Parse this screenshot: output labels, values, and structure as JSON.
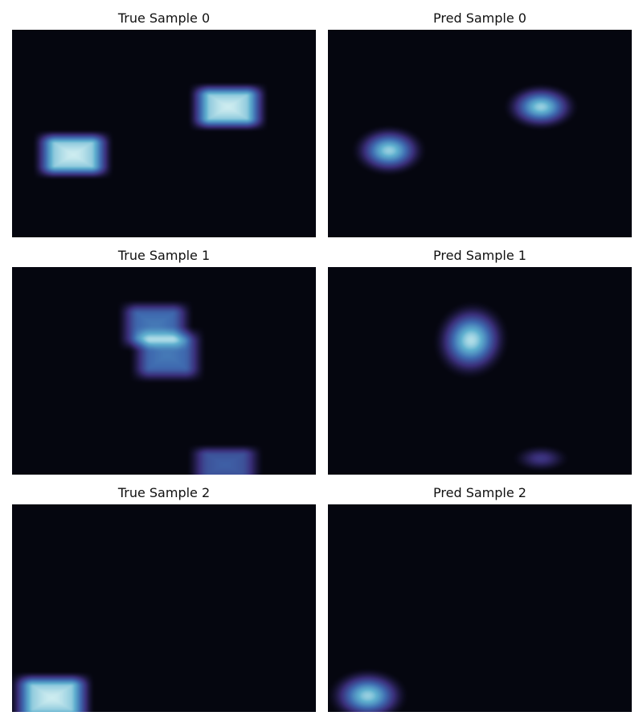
{
  "chart_data": [
    {
      "type": "heatmap",
      "title": "True Sample 0",
      "background": "#05060f",
      "colormap": [
        "#05060f",
        "#3a2f7a",
        "#3f6bb0",
        "#5fb0cf",
        "#e8fbf8"
      ],
      "blobs": [
        {
          "shape": "rect",
          "cx": 0.2,
          "cy": 0.6,
          "rx": 0.105,
          "ry": 0.095,
          "intensity": 0.95
        },
        {
          "shape": "rect",
          "cx": 0.71,
          "cy": 0.37,
          "rx": 0.105,
          "ry": 0.095,
          "intensity": 0.95
        }
      ]
    },
    {
      "type": "heatmap",
      "title": "Pred Sample 0",
      "background": "#05060f",
      "colormap": [
        "#05060f",
        "#3a2f7a",
        "#3f6bb0",
        "#5fb0cf",
        "#e8fbf8"
      ],
      "blobs": [
        {
          "shape": "ellipse",
          "cx": 0.2,
          "cy": 0.58,
          "rx": 0.13,
          "ry": 0.13,
          "intensity": 0.85
        },
        {
          "shape": "ellipse",
          "cx": 0.7,
          "cy": 0.37,
          "rx": 0.13,
          "ry": 0.12,
          "intensity": 0.85
        }
      ]
    },
    {
      "type": "heatmap",
      "title": "True Sample 1",
      "background": "#05060f",
      "colormap": [
        "#05060f",
        "#3a2f7a",
        "#3f6bb0",
        "#5fb0cf",
        "#e8fbf8"
      ],
      "blobs": [
        {
          "shape": "rect",
          "cx": 0.47,
          "cy": 0.28,
          "rx": 0.1,
          "ry": 0.1,
          "intensity": 0.55
        },
        {
          "shape": "rect",
          "cx": 0.51,
          "cy": 0.42,
          "rx": 0.1,
          "ry": 0.11,
          "intensity": 0.55
        },
        {
          "shape": "rect",
          "cx": 0.7,
          "cy": 0.95,
          "rx": 0.1,
          "ry": 0.08,
          "intensity": 0.45
        }
      ]
    },
    {
      "type": "heatmap",
      "title": "Pred Sample 1",
      "background": "#05060f",
      "colormap": [
        "#05060f",
        "#3a2f7a",
        "#3f6bb0",
        "#5fb0cf",
        "#e8fbf8"
      ],
      "blobs": [
        {
          "shape": "ellipse",
          "cx": 0.47,
          "cy": 0.35,
          "rx": 0.13,
          "ry": 0.2,
          "intensity": 0.9,
          "rotate": -0.55
        },
        {
          "shape": "ellipse",
          "cx": 0.7,
          "cy": 0.92,
          "rx": 0.1,
          "ry": 0.07,
          "intensity": 0.28
        }
      ]
    },
    {
      "type": "heatmap",
      "title": "True Sample 2",
      "background": "#05060f",
      "colormap": [
        "#05060f",
        "#3a2f7a",
        "#3f6bb0",
        "#5fb0cf",
        "#e8fbf8"
      ],
      "blobs": [
        {
          "shape": "rect",
          "cx": 0.13,
          "cy": 0.93,
          "rx": 0.11,
          "ry": 0.1,
          "intensity": 0.95
        }
      ]
    },
    {
      "type": "heatmap",
      "title": "Pred Sample 2",
      "background": "#05060f",
      "colormap": [
        "#05060f",
        "#3a2f7a",
        "#3f6bb0",
        "#5fb0cf",
        "#e8fbf8"
      ],
      "blobs": [
        {
          "shape": "ellipse",
          "cx": 0.13,
          "cy": 0.92,
          "rx": 0.14,
          "ry": 0.14,
          "intensity": 0.85
        }
      ]
    }
  ]
}
